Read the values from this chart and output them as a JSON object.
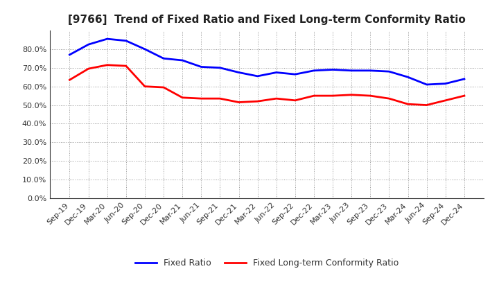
{
  "title": "[9766]  Trend of Fixed Ratio and Fixed Long-term Conformity Ratio",
  "x_labels": [
    "Sep-19",
    "Dec-19",
    "Mar-20",
    "Jun-20",
    "Sep-20",
    "Dec-20",
    "Mar-21",
    "Jun-21",
    "Sep-21",
    "Dec-21",
    "Mar-22",
    "Jun-22",
    "Sep-22",
    "Dec-22",
    "Mar-23",
    "Jun-23",
    "Sep-23",
    "Dec-23",
    "Mar-24",
    "Jun-24",
    "Sep-24",
    "Dec-24"
  ],
  "fixed_ratio": [
    77.0,
    82.5,
    85.5,
    84.5,
    80.0,
    75.0,
    74.0,
    70.5,
    70.0,
    67.5,
    65.5,
    67.5,
    66.5,
    68.5,
    69.0,
    68.5,
    68.5,
    68.0,
    65.0,
    61.0,
    61.5,
    64.0
  ],
  "fixed_lt_ratio": [
    63.5,
    69.5,
    71.5,
    71.0,
    60.0,
    59.5,
    54.0,
    53.5,
    53.5,
    51.5,
    52.0,
    53.5,
    52.5,
    55.0,
    55.0,
    55.5,
    55.0,
    53.5,
    50.5,
    50.0,
    52.5,
    55.0
  ],
  "fixed_ratio_color": "#0000FF",
  "fixed_lt_ratio_color": "#FF0000",
  "ylim": [
    0,
    90
  ],
  "yticks": [
    0,
    10,
    20,
    30,
    40,
    50,
    60,
    70,
    80
  ],
  "background_color": "#FFFFFF",
  "grid_color": "#999999",
  "legend_labels": [
    "Fixed Ratio",
    "Fixed Long-term Conformity Ratio"
  ],
  "title_fontsize": 11,
  "tick_fontsize": 8,
  "legend_fontsize": 9,
  "linewidth": 2.0
}
